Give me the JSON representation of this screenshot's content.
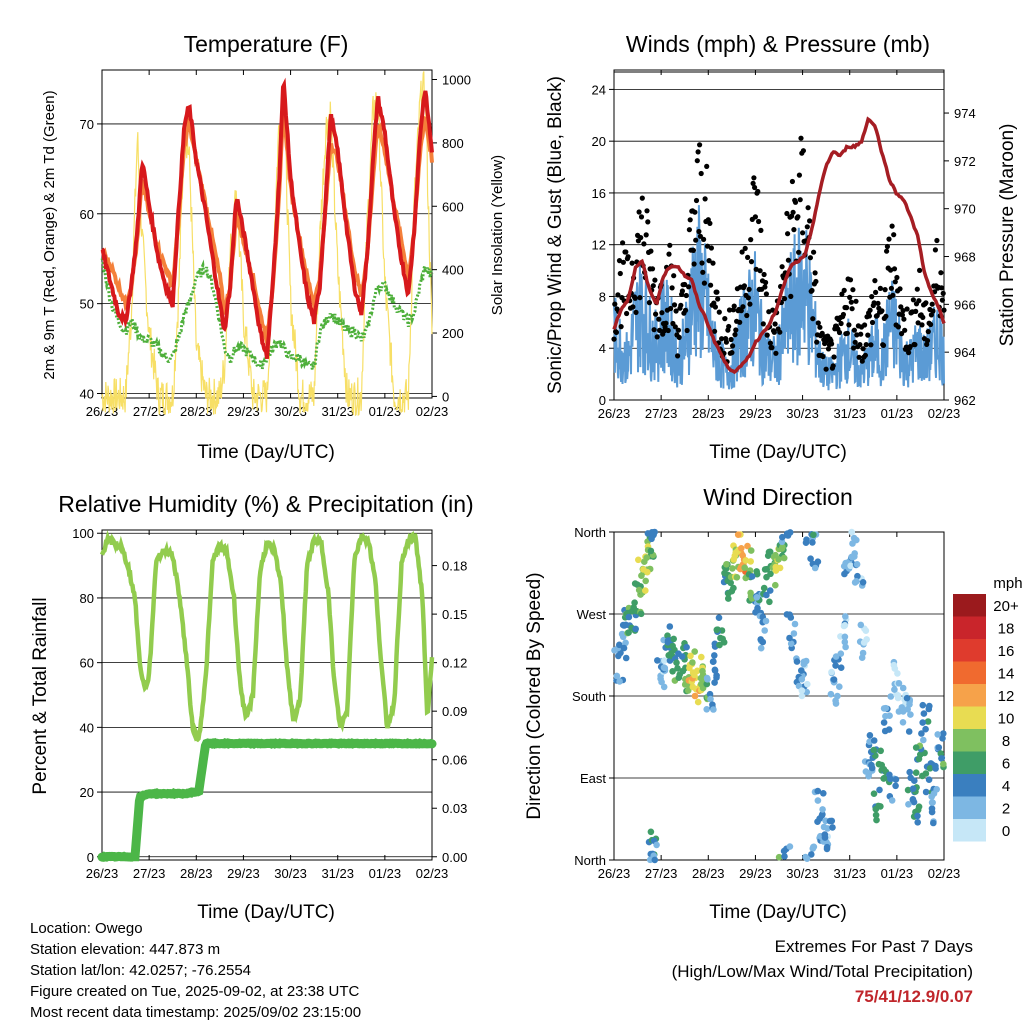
{
  "footer": {
    "location": "Location: Owego",
    "elevation": "Station elevation: 447.873 m",
    "latlon": "Station lat/lon: 42.0257; -76.2554",
    "created": "Figure created on Tue, 2025-09-02, at 23:38 UTC",
    "recent": "Most recent data timestamp: 2025/09/02 23:15:00",
    "extremes_title": "Extremes For Past 7 Days",
    "extremes_sub": "(High/Low/Max Wind/Total Precipitation)",
    "extremes_values": "75/41/12.9/0.07"
  },
  "colors": {
    "temp2m": "#d7191c",
    "temp9m": "#f4803a",
    "dewpoint": "#4daf3a",
    "solar": "#f7df66",
    "wind": "#5b9bd5",
    "gust": "#000000",
    "pressure": "#a51d23",
    "rh": "#92cc4e",
    "precip": "#4cb648"
  },
  "chart_data": [
    {
      "type": "line",
      "title": "Temperature (F)",
      "xlabel": "Time (Day/UTC)",
      "ylabel": "2m & 9m T (Red, Orange) & 2m Td (Green)",
      "y2label": "Solar Insolation (Yellow)",
      "x_ticks": [
        "26/23",
        "27/23",
        "28/23",
        "29/23",
        "30/23",
        "31/23",
        "01/23",
        "02/23"
      ],
      "ylim": [
        39.5,
        76
      ],
      "y_ticks": [
        40,
        50,
        60,
        70
      ],
      "y2lim": [
        -5,
        1030
      ],
      "y2_ticks": [
        0,
        200,
        400,
        600,
        800,
        1000
      ],
      "x": [
        0,
        0.2,
        0.35,
        0.5,
        0.62,
        0.75,
        0.85,
        1.0,
        1.2,
        1.35,
        1.5,
        1.62,
        1.75,
        1.85,
        2.0,
        2.2,
        2.35,
        2.5,
        2.6,
        2.72,
        2.85,
        3.0,
        3.2,
        3.35,
        3.5,
        3.62,
        3.75,
        3.85,
        4.0,
        4.2,
        4.35,
        4.5,
        4.62,
        4.75,
        4.85,
        5.0,
        5.2,
        5.35,
        5.5,
        5.62,
        5.75,
        5.85,
        6.0,
        6.2,
        6.35,
        6.5,
        6.62,
        6.75,
        6.85,
        7.0
      ],
      "series": [
        {
          "name": "2m T",
          "values": [
            56,
            52,
            49,
            48,
            52,
            58,
            66,
            61,
            55,
            52,
            50,
            60,
            70,
            72,
            66,
            60,
            55,
            50,
            47,
            52,
            62,
            58,
            52,
            47,
            44,
            52,
            63,
            75,
            64,
            56,
            51,
            48,
            52,
            62,
            71,
            67,
            58,
            52,
            49,
            55,
            66,
            73,
            69,
            60,
            55,
            51,
            58,
            69,
            74,
            67
          ]
        },
        {
          "name": "9m T",
          "values": [
            56,
            54,
            52,
            50,
            52,
            57,
            64,
            60,
            56,
            54,
            52,
            59,
            68,
            70,
            66,
            61,
            57,
            53,
            49,
            52,
            60,
            57,
            53,
            49,
            46,
            52,
            61,
            72,
            63,
            57,
            53,
            50,
            53,
            61,
            68,
            66,
            59,
            54,
            51,
            55,
            64,
            70,
            67,
            61,
            57,
            53,
            58,
            67,
            71,
            66
          ]
        },
        {
          "name": "2m Td",
          "values": [
            55,
            50,
            48,
            47,
            48,
            47,
            46,
            46,
            45,
            44,
            44,
            46,
            49,
            50,
            53,
            54,
            52,
            48,
            45,
            44,
            45,
            45,
            44,
            43,
            44,
            45,
            46,
            45,
            44,
            44,
            43,
            43,
            47,
            48,
            49,
            48,
            47,
            47,
            46,
            47,
            50,
            52,
            52,
            50,
            49,
            48,
            49,
            52,
            54,
            53
          ]
        },
        {
          "name": "Solar",
          "axis": "y2",
          "values": [
            0,
            0,
            0,
            0,
            250,
            820,
            500,
            200,
            0,
            0,
            0,
            300,
            850,
            760,
            150,
            0,
            0,
            0,
            100,
            450,
            650,
            250,
            0,
            0,
            0,
            400,
            850,
            960,
            300,
            0,
            0,
            0,
            500,
            850,
            900,
            400,
            0,
            0,
            0,
            520,
            900,
            940,
            350,
            0,
            0,
            0,
            600,
            930,
            980,
            200
          ]
        }
      ]
    },
    {
      "type": "scatter",
      "title": "Winds (mph) & Pressure (mb)",
      "xlabel": "Time (Day/UTC)",
      "ylabel": "Sonic/Prop Wind & Gust (Blue, Black)",
      "y2label": "Station Pressure (Maroon)",
      "x_ticks": [
        "26/23",
        "27/23",
        "28/23",
        "29/23",
        "30/23",
        "31/23",
        "01/23",
        "02/23"
      ],
      "ylim": [
        0,
        25.5
      ],
      "y_ticks": [
        0,
        4,
        8,
        12,
        16,
        20,
        24
      ],
      "y2lim": [
        962,
        975.8
      ],
      "y2_ticks": [
        962,
        964,
        966,
        968,
        970,
        972,
        974
      ],
      "x": [
        0,
        0.15,
        0.3,
        0.45,
        0.6,
        0.75,
        0.9,
        1.05,
        1.2,
        1.35,
        1.5,
        1.65,
        1.8,
        1.95,
        2.1,
        2.25,
        2.4,
        2.55,
        2.7,
        2.85,
        3.0,
        3.15,
        3.3,
        3.45,
        3.6,
        3.75,
        3.9,
        4.05,
        4.2,
        4.35,
        4.5,
        4.65,
        4.8,
        4.95,
        5.1,
        5.25,
        5.4,
        5.55,
        5.7,
        5.85,
        6.0,
        6.15,
        6.3,
        6.45,
        6.6,
        6.75,
        6.9,
        7.0
      ],
      "series": [
        {
          "name": "Wind",
          "values": [
            5,
            4,
            3,
            6,
            7,
            5,
            4,
            6,
            5,
            3,
            4,
            8,
            9,
            7,
            4,
            3,
            2,
            3,
            5,
            6,
            7,
            4,
            3,
            3,
            5,
            7,
            8,
            9,
            6,
            3,
            2,
            2,
            3,
            4,
            3,
            2,
            3,
            4,
            3,
            6,
            5,
            3,
            3,
            4,
            3,
            4,
            5,
            3
          ]
        },
        {
          "name": "Gust",
          "values": [
            8,
            10,
            9,
            12,
            14,
            11,
            8,
            9,
            10,
            6,
            8,
            13,
            17,
            15,
            10,
            6,
            5,
            7,
            9,
            12,
            16,
            10,
            6,
            6,
            10,
            14,
            16,
            17,
            11,
            5,
            4,
            4,
            6,
            9,
            7,
            5,
            6,
            9,
            6,
            12,
            10,
            6,
            6,
            9,
            6,
            8,
            12,
            7
          ]
        },
        {
          "name": "Pressure",
          "axis": "y2",
          "values": [
            965.0,
            965.8,
            966.2,
            967.5,
            967.8,
            966.6,
            966.0,
            967.2,
            967.6,
            967.6,
            967.2,
            967.0,
            966.0,
            965.4,
            964.6,
            964.0,
            963.4,
            963.2,
            963.4,
            963.8,
            964.4,
            964.8,
            965.2,
            965.8,
            966.8,
            967.6,
            967.8,
            968.0,
            969.2,
            970.6,
            971.8,
            972.4,
            972.2,
            972.6,
            972.6,
            972.8,
            973.8,
            973.4,
            972.2,
            971.2,
            970.6,
            970.4,
            969.6,
            968.8,
            967.2,
            966.4,
            965.8,
            965.2
          ]
        }
      ]
    },
    {
      "type": "line",
      "title": "Relative Humidity (%) & Precipitation (in)",
      "xlabel": "Time (Day/UTC)",
      "ylabel": "Percent & Total Rainfall",
      "x_ticks": [
        "26/23",
        "27/23",
        "28/23",
        "29/23",
        "30/23",
        "31/23",
        "01/23",
        "02/23"
      ],
      "ylim": [
        -1,
        101
      ],
      "y_ticks": [
        0,
        20,
        40,
        60,
        80,
        100
      ],
      "y2lim": [
        -0.002,
        0.202
      ],
      "y2_ticks": [
        "0.00",
        "0.03",
        "0.06",
        "0.09",
        "0.12",
        "0.15",
        "0.18"
      ],
      "x": [
        0,
        0.1,
        0.25,
        0.4,
        0.55,
        0.7,
        0.8,
        0.9,
        1.0,
        1.15,
        1.35,
        1.5,
        1.65,
        1.8,
        1.92,
        2.05,
        2.2,
        2.35,
        2.5,
        2.65,
        2.8,
        2.92,
        3.05,
        3.2,
        3.35,
        3.5,
        3.65,
        3.8,
        3.92,
        4.05,
        4.2,
        4.35,
        4.5,
        4.65,
        4.8,
        4.92,
        5.05,
        5.2,
        5.35,
        5.5,
        5.65,
        5.8,
        5.92,
        6.05,
        6.2,
        6.35,
        6.5,
        6.65,
        6.8,
        6.9,
        7.0
      ],
      "series": [
        {
          "name": "RH",
          "values": [
            93,
            98,
            97,
            96,
            90,
            80,
            60,
            52,
            56,
            92,
            95,
            93,
            80,
            60,
            40,
            36,
            55,
            92,
            96,
            94,
            80,
            55,
            42,
            50,
            88,
            97,
            95,
            84,
            60,
            42,
            48,
            90,
            98,
            97,
            82,
            55,
            40,
            45,
            92,
            99,
            98,
            85,
            60,
            40,
            48,
            90,
            98,
            99,
            80,
            42,
            62
          ]
        },
        {
          "name": "Precip",
          "axis": "y2",
          "values": [
            0.0,
            0.0,
            0.0,
            0.0,
            0.0,
            0.0,
            0.037,
            0.038,
            0.039,
            0.039,
            0.039,
            0.039,
            0.039,
            0.039,
            0.04,
            0.04,
            0.07,
            0.07,
            0.07,
            0.07,
            0.07,
            0.07,
            0.07,
            0.07,
            0.07,
            0.07,
            0.07,
            0.07,
            0.07,
            0.07,
            0.07,
            0.07,
            0.07,
            0.07,
            0.07,
            0.07,
            0.07,
            0.07,
            0.07,
            0.07,
            0.07,
            0.07,
            0.07,
            0.07,
            0.07,
            0.07,
            0.07,
            0.07,
            0.07,
            0.07,
            0.07
          ]
        }
      ]
    },
    {
      "type": "scatter",
      "title": "Wind Direction",
      "xlabel": "Time (Day/UTC)",
      "ylabel": "Direction (Colored By Speed)",
      "x_ticks": [
        "26/23",
        "27/23",
        "28/23",
        "29/23",
        "30/23",
        "31/23",
        "01/23",
        "02/23"
      ],
      "y_ticks": [
        "North",
        "East",
        "South",
        "West",
        "North"
      ],
      "ylim": [
        0,
        360
      ],
      "legend_title": "mph",
      "legend_labels": [
        "20+",
        "18",
        "16",
        "14",
        "12",
        "10",
        "8",
        "6",
        "4",
        "2",
        "0"
      ],
      "legend_colors": [
        "#9b1a1d",
        "#c9252b",
        "#df3b2d",
        "#f06a2f",
        "#f6a24a",
        "#e8dc52",
        "#7fc060",
        "#3f9d67",
        "#3a7fbf",
        "#7db7e3",
        "#c6e7f7"
      ],
      "series": [
        {
          "name": "Direction",
          "points": [
            [
              0.1,
              215,
              3
            ],
            [
              0.2,
              240,
              4
            ],
            [
              0.3,
              260,
              6
            ],
            [
              0.4,
              270,
              5
            ],
            [
              0.5,
              290,
              7
            ],
            [
              0.6,
              310,
              8
            ],
            [
              0.7,
              335,
              9
            ],
            [
              0.75,
              350,
              7
            ],
            [
              0.8,
              15,
              5
            ],
            [
              0.85,
              6,
              3
            ],
            [
              1.0,
              200,
              2
            ],
            [
              1.1,
              225,
              3
            ],
            [
              1.2,
              240,
              5
            ],
            [
              1.3,
              215,
              6
            ],
            [
              1.45,
              220,
              5
            ],
            [
              1.55,
              200,
              7
            ],
            [
              1.65,
              210,
              10
            ],
            [
              1.75,
              190,
              11
            ],
            [
              1.85,
              205,
              9
            ],
            [
              1.95,
              190,
              8
            ],
            [
              2.05,
              180,
              3
            ],
            [
              2.15,
              220,
              4
            ],
            [
              2.25,
              250,
              5
            ],
            [
              2.35,
              305,
              6
            ],
            [
              2.45,
              310,
              7
            ],
            [
              2.55,
              325,
              9
            ],
            [
              2.65,
              340,
              10
            ],
            [
              2.75,
              330,
              12
            ],
            [
              2.85,
              320,
              8
            ],
            [
              2.95,
              300,
              6
            ],
            [
              3.05,
              280,
              4
            ],
            [
              3.15,
              250,
              3
            ],
            [
              3.25,
              300,
              5
            ],
            [
              3.35,
              320,
              7
            ],
            [
              3.45,
              335,
              9
            ],
            [
              3.55,
              350,
              8
            ],
            [
              3.65,
              6,
              4
            ],
            [
              3.75,
              250,
              3
            ],
            [
              3.95,
              210,
              3
            ],
            [
              4.05,
              200,
              2
            ],
            [
              4.15,
              360,
              3
            ],
            [
              4.25,
              340,
              4
            ],
            [
              4.35,
              60,
              3
            ],
            [
              4.45,
              30,
              2
            ],
            [
              4.55,
              30,
              3
            ],
            [
              4.65,
              190,
              2
            ],
            [
              4.75,
              210,
              3
            ],
            [
              4.85,
              250,
              2
            ],
            [
              4.95,
              330,
              3
            ],
            [
              5.1,
              340,
              2
            ],
            [
              5.2,
              320,
              2
            ],
            [
              5.3,
              240,
              1
            ],
            [
              5.4,
              110,
              3
            ],
            [
              5.5,
              120,
              4
            ],
            [
              5.6,
              60,
              5
            ],
            [
              5.7,
              100,
              6
            ],
            [
              5.8,
              160,
              3
            ],
            [
              5.9,
              80,
              4
            ],
            [
              6.0,
              200,
              1
            ],
            [
              6.1,
              180,
              1
            ],
            [
              6.2,
              160,
              2
            ],
            [
              6.3,
              80,
              4
            ],
            [
              6.4,
              60,
              5
            ],
            [
              6.5,
              110,
              6
            ],
            [
              6.6,
              150,
              4
            ],
            [
              6.7,
              90,
              5
            ],
            [
              6.8,
              60,
              3
            ],
            [
              6.9,
              120,
              4
            ],
            [
              7.0,
              100,
              6
            ]
          ]
        }
      ]
    }
  ]
}
